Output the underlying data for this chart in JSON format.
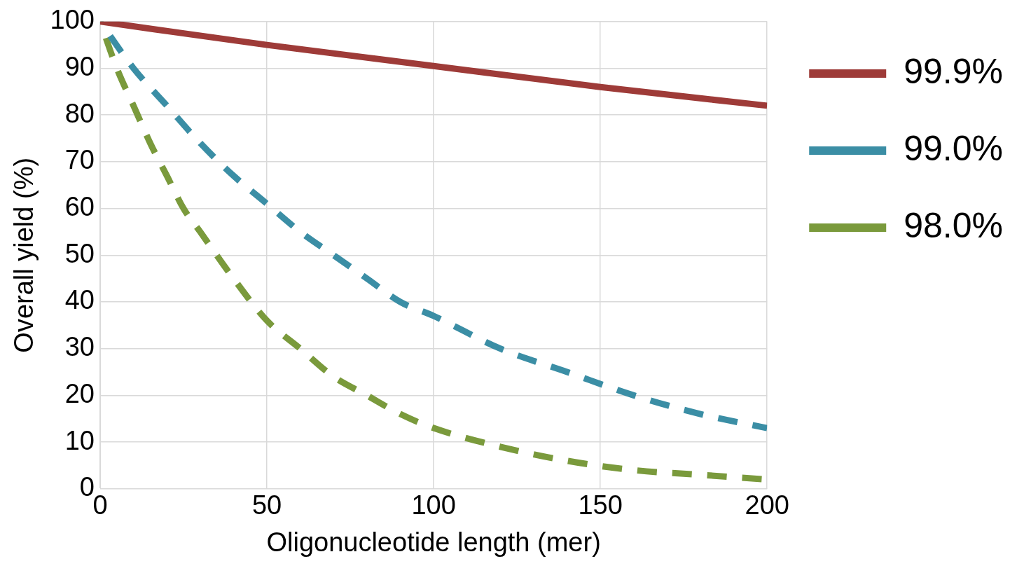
{
  "chart_data": {
    "type": "line",
    "xlabel": "Oligonucleotide length (mer)",
    "ylabel": "Overall yield (%)",
    "xlim": [
      0,
      200
    ],
    "xticks": [
      0,
      50,
      100,
      150,
      200
    ],
    "ylim": [
      0,
      100
    ],
    "yticks": [
      0,
      10,
      20,
      30,
      40,
      50,
      60,
      70,
      80,
      90,
      100
    ],
    "grid": true,
    "legend": "right",
    "marker": "none",
    "series": [
      {
        "name": "99.9%",
        "color": "#9e3b38",
        "line_style": "solid",
        "x": [
          0,
          50,
          100,
          150,
          200
        ],
        "values": [
          100,
          95,
          90.5,
          86,
          82
        ]
      },
      {
        "name": "99.0%",
        "color": "#3b8ea5",
        "line_style": "dashed",
        "x": [
          0,
          10,
          20,
          30,
          40,
          50,
          60,
          70,
          80,
          90,
          100,
          120,
          140,
          160,
          180,
          200
        ],
        "values": [
          100,
          90,
          82,
          74,
          67,
          61,
          55,
          50,
          45,
          40,
          37,
          30,
          25,
          20,
          16,
          13
        ]
      },
      {
        "name": "98.0%",
        "color": "#7a9a3c",
        "line_style": "dashed",
        "x": [
          0,
          5,
          10,
          15,
          20,
          25,
          30,
          40,
          50,
          60,
          70,
          80,
          90,
          100,
          120,
          140,
          160,
          180,
          200
        ],
        "values": [
          100,
          90,
          82,
          74,
          67,
          60,
          55,
          45,
          36,
          30,
          24,
          20,
          16,
          13,
          9,
          6,
          4,
          3,
          2
        ]
      }
    ]
  }
}
